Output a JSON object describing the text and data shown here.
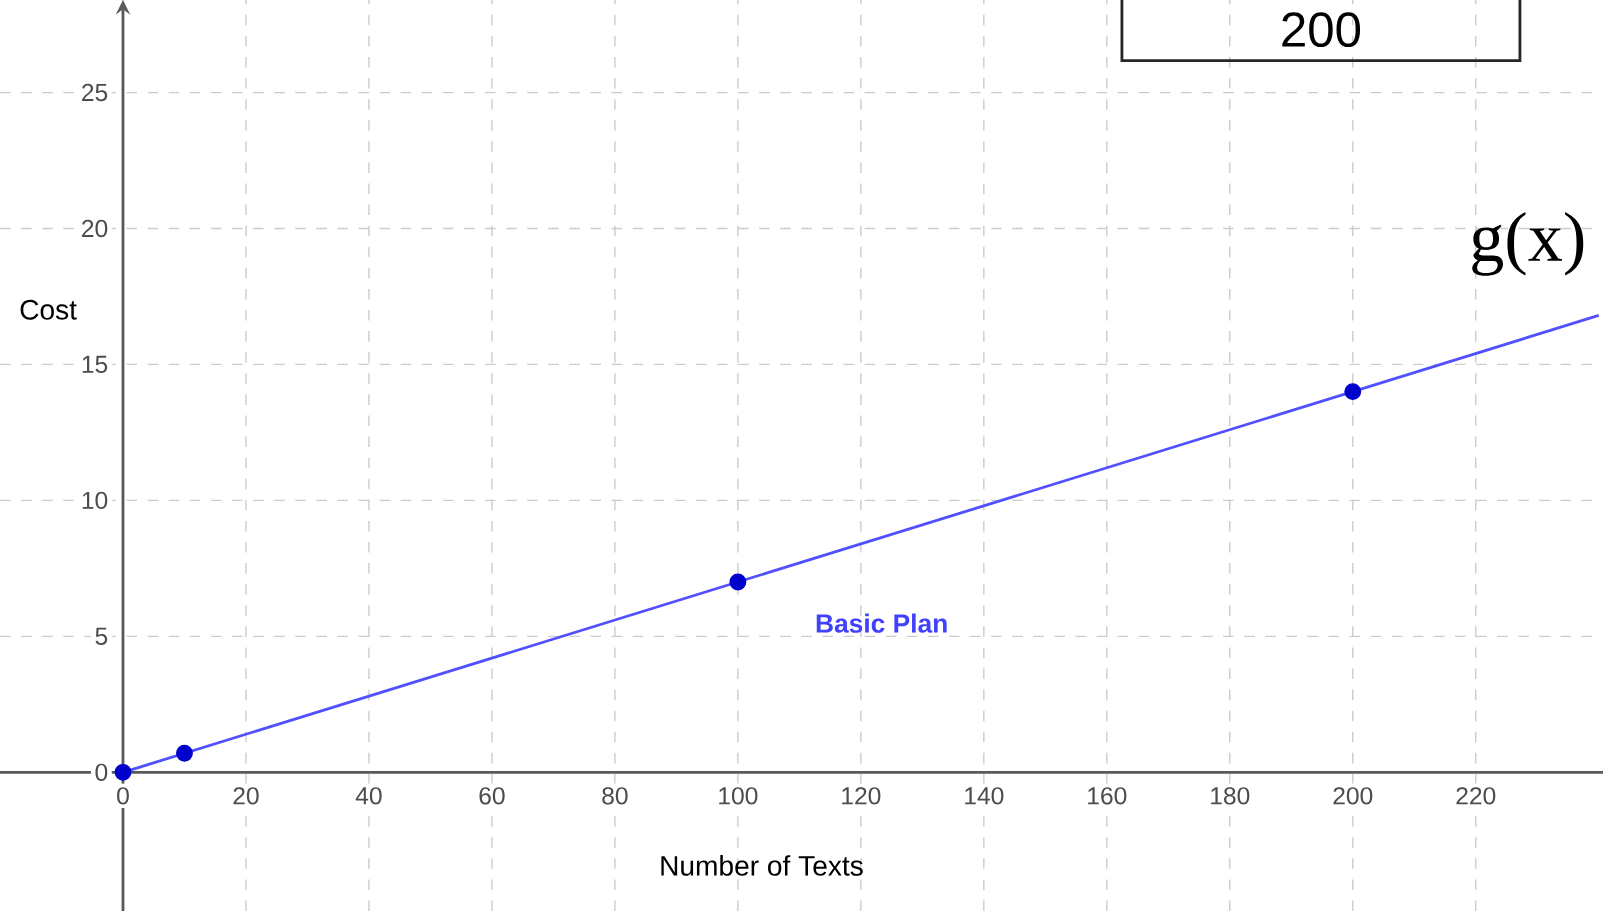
{
  "chart_data": {
    "type": "line",
    "xlabel": "Number of Texts",
    "ylabel": "Cost",
    "xlim": [
      -20,
      240.7
    ],
    "ylim": [
      -5.1,
      28.4
    ],
    "xticks": [
      0,
      20,
      40,
      60,
      80,
      100,
      120,
      140,
      160,
      180,
      200,
      220
    ],
    "yticks": [
      0,
      5,
      10,
      15,
      20,
      25
    ],
    "grid": true,
    "series": [
      {
        "name": "g(x)",
        "color": "#5050ff",
        "x": [
          0,
          240
        ],
        "values": [
          0,
          16.8
        ],
        "marker": "none"
      },
      {
        "type": "scatter",
        "color": "#0000cc",
        "x": [
          0,
          10,
          100,
          200
        ],
        "values": [
          0,
          0.7,
          7,
          14
        ],
        "marker": "circle"
      }
    ],
    "annotations": [
      "Basic Plan",
      "200"
    ]
  }
}
